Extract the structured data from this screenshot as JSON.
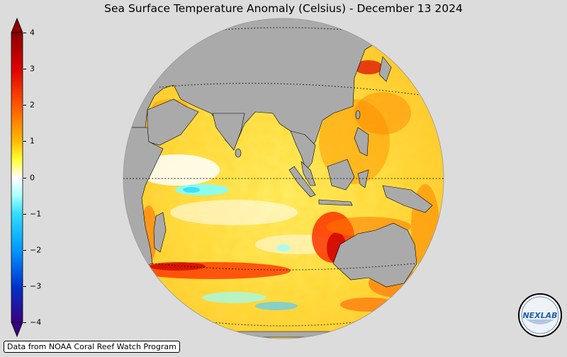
{
  "title": "Sea Surface Temperature Anomaly (Celsius) - December 13 2024",
  "colorbar": {
    "ticks": [
      {
        "value": 4,
        "label": "4"
      },
      {
        "value": 3,
        "label": "3"
      },
      {
        "value": 2,
        "label": "2"
      },
      {
        "value": 1,
        "label": "1"
      },
      {
        "value": 0,
        "label": "0"
      },
      {
        "value": -1,
        "label": "−1"
      },
      {
        "value": -2,
        "label": "−2"
      },
      {
        "value": -3,
        "label": "−3"
      },
      {
        "value": -4,
        "label": "−4"
      }
    ],
    "range": [
      -4,
      4
    ],
    "colors": {
      "max": "#8b0000",
      "high": "#ff1a00",
      "warm": "#ff9900",
      "mild": "#ffff33",
      "neutral": "#ffffff",
      "cool": "#33ffff",
      "cold": "#0077ff",
      "min": "#3a0080"
    }
  },
  "credit": "Data from NOAA Coral Reef Watch Program",
  "logo_text": "NEXLAB",
  "colors": {
    "background": "#dcdcdc",
    "land": "#aaaaaa"
  }
}
